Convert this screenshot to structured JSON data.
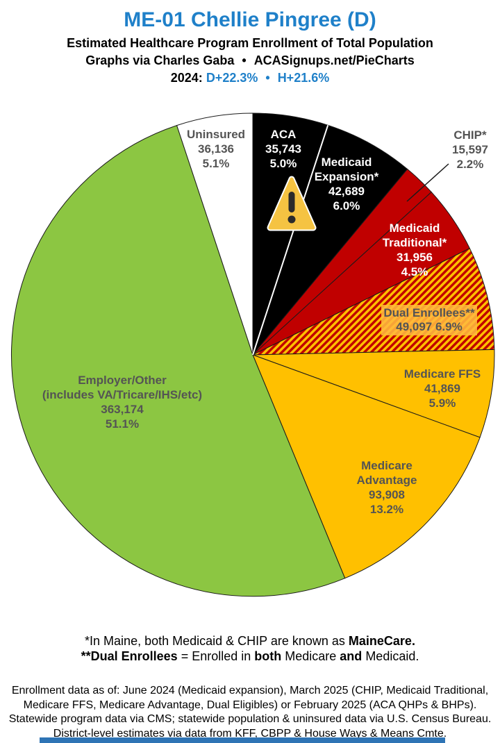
{
  "header": {
    "title": "ME-01 Chellie Pingree (D)",
    "subtitle": "Estimated Healthcare Program Enrollment of Total Population",
    "credit_left": "Graphs via Charles Gaba",
    "credit_bullet": "•",
    "credit_right": "ACASignups.net/PieCharts",
    "year_label": "2024:",
    "d_margin": "D+22.3%",
    "margin_bullet": "•",
    "h_margin": "H+21.6%"
  },
  "colors": {
    "title_blue": "#1F80C9",
    "margin_blue": "#1F80C9",
    "slice_black": "#000000",
    "slice_red": "#C00000",
    "slice_gold": "#FFC000",
    "slice_green": "#8CC642",
    "slice_white": "#FFFFFF",
    "dark_label": "#545454",
    "footer_bar_blue": "#2E74B5",
    "warning_amber": "#F5C342"
  },
  "chart_data": {
    "type": "pie",
    "title": "Estimated Healthcare Program Enrollment of Total Population",
    "direction": "clockwise",
    "start_position": "12 o'clock",
    "slices": [
      {
        "name": "ACA",
        "value": 35743,
        "value_label": "35,743",
        "pct": 5.0,
        "pct_label": "5.0%",
        "color": "#000000",
        "label_color": "#FFFFFF"
      },
      {
        "name": "Medicaid Expansion*",
        "lines": [
          "Medicaid",
          "Expansion*"
        ],
        "value": 42689,
        "value_label": "42,689",
        "pct": 6.0,
        "pct_label": "6.0%",
        "color": "#000000",
        "label_color": "#FFFFFF"
      },
      {
        "name": "CHIP*",
        "value": 15597,
        "value_label": "15,597",
        "pct": 2.2,
        "pct_label": "2.2%",
        "color": "#C00000",
        "label_color": "#545454",
        "label_outside": true
      },
      {
        "name": "Medicaid Traditional*",
        "lines": [
          "Medicaid",
          "Traditional*"
        ],
        "value": 31956,
        "value_label": "31,956",
        "pct": 4.5,
        "pct_label": "4.5%",
        "color": "#C00000",
        "label_color": "#FFFFFF"
      },
      {
        "name": "Dual Enrollees**",
        "value": 49097,
        "value_label": "49,097",
        "pct": 6.9,
        "pct_label": "6.9%",
        "pattern": "diagonal-stripes",
        "color": "#C00000",
        "color2": "#FFC000",
        "label_color": "#545454"
      },
      {
        "name": "Medicare FFS",
        "value": 41869,
        "value_label": "41,869",
        "pct": 5.9,
        "pct_label": "5.9%",
        "color": "#FFC000",
        "label_color": "#545454"
      },
      {
        "name": "Medicare Advantage",
        "lines": [
          "Medicare",
          "Advantage"
        ],
        "value": 93908,
        "value_label": "93,908",
        "pct": 13.2,
        "pct_label": "13.2%",
        "color": "#FFC000",
        "label_color": "#545454"
      },
      {
        "name": "Employer/Other",
        "lines": [
          "Employer/Other",
          "(includes VA/Tricare/IHS/etc)"
        ],
        "value": 363174,
        "value_label": "363,174",
        "pct": 51.1,
        "pct_label": "51.1%",
        "color": "#8CC642",
        "label_color": "#545454"
      },
      {
        "name": "Uninsured",
        "value": 36136,
        "value_label": "36,136",
        "pct": 5.1,
        "pct_label": "5.1%",
        "color": "#FFFFFF",
        "label_color": "#545454"
      }
    ]
  },
  "footnotes": {
    "line1": [
      "*In Maine, both Medicaid & CHIP are known as ",
      "MaineCare."
    ],
    "line2": [
      "**Dual Enrollees",
      " = Enrolled in ",
      "both",
      " Medicare ",
      "and",
      " Medicaid."
    ]
  },
  "footer": {
    "lines": [
      "Enrollment data as of: June 2024 (Medicaid expansion), March 2025 (CHIP, Medicaid Traditional,",
      "Medicare FFS, Medicare Advantage, Dual Eligibles) or February 2025 (ACA QHPs & BHPs).",
      "Statewide program data via CMS; statewide population & uninsured data via U.S. Census Bureau.",
      "District-level estimates via data from KFF, CBPP & House Ways & Means Cmte."
    ]
  }
}
